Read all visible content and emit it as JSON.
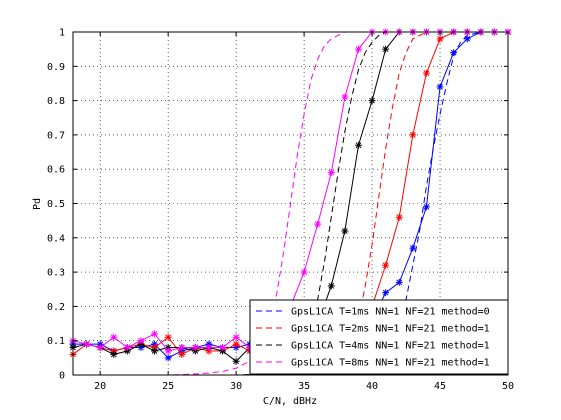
{
  "chart_data": {
    "type": "line",
    "title": "",
    "xlabel": "C/N, dBHz",
    "ylabel": "Pd",
    "xlim": [
      18,
      50
    ],
    "ylim": [
      0,
      1
    ],
    "x_ticks": [
      20,
      25,
      30,
      35,
      40,
      45,
      50
    ],
    "y_ticks": [
      0,
      0.1,
      0.2,
      0.3,
      0.4,
      0.5,
      0.6,
      0.7,
      0.8,
      0.9,
      1
    ],
    "x_tick_labels": [
      "20",
      "25",
      "30",
      "35",
      "40",
      "45",
      "50"
    ],
    "y_tick_labels": [
      "0",
      "0.1",
      "0.2",
      "0.3",
      "0.4",
      "0.5",
      "0.6",
      "0.7",
      "0.8",
      "0.9",
      "1"
    ],
    "grid": true,
    "legend_position": "bottom-right",
    "series": [
      {
        "name": "GpsL1CA T=1ms NN=1 NF=21 method=0",
        "color": "#0000ff",
        "marker": "star",
        "x": [
          18,
          19,
          20,
          21,
          22,
          23,
          24,
          25,
          26,
          27,
          28,
          29,
          30,
          31,
          32,
          33,
          34,
          35,
          36,
          37,
          38,
          39,
          40,
          41,
          42,
          43,
          44,
          45,
          46,
          47,
          48,
          49,
          50
        ],
        "y": [
          0.09,
          0.09,
          0.09,
          0.07,
          0.08,
          0.08,
          0.09,
          0.05,
          0.07,
          0.08,
          0.09,
          0.08,
          0.08,
          0.09,
          0.08,
          0.09,
          0.08,
          0.08,
          0.09,
          0.09,
          0.1,
          0.12,
          0.16,
          0.24,
          0.27,
          0.37,
          0.49,
          0.84,
          0.94,
          0.98,
          1.0,
          1.0,
          1.0
        ]
      },
      {
        "name": "GpsL1CA T=2ms NN=1 NF=21 method=1",
        "color": "#ff0000",
        "marker": "star",
        "x": [
          18,
          19,
          20,
          21,
          22,
          23,
          24,
          25,
          26,
          27,
          28,
          29,
          30,
          31,
          32,
          33,
          34,
          35,
          36,
          37,
          38,
          39,
          40,
          41,
          42,
          43,
          44,
          45,
          46,
          47,
          48,
          49,
          50
        ],
        "y": [
          0.06,
          0.09,
          0.08,
          0.07,
          0.08,
          0.09,
          0.08,
          0.11,
          0.06,
          0.08,
          0.07,
          0.07,
          0.09,
          0.07,
          0.08,
          0.08,
          0.08,
          0.08,
          0.09,
          0.09,
          0.12,
          0.15,
          0.2,
          0.32,
          0.46,
          0.7,
          0.88,
          0.98,
          1.0,
          1.0,
          1.0,
          1.0,
          1.0
        ]
      },
      {
        "name": "GpsL1CA T=4ms NN=1 NF=21 method=1",
        "color": "#000000",
        "marker": "star",
        "x": [
          18,
          19,
          20,
          21,
          22,
          23,
          24,
          25,
          26,
          27,
          28,
          29,
          30,
          31,
          32,
          33,
          34,
          35,
          36,
          37,
          38,
          39,
          40,
          41,
          42,
          43,
          44,
          45,
          46,
          47,
          48,
          49,
          50
        ],
        "y": [
          0.08,
          0.09,
          0.08,
          0.06,
          0.07,
          0.09,
          0.07,
          0.08,
          0.08,
          0.07,
          0.08,
          0.07,
          0.04,
          0.08,
          0.09,
          0.07,
          0.08,
          0.1,
          0.15,
          0.26,
          0.42,
          0.67,
          0.8,
          0.95,
          1.0,
          1.0,
          1.0,
          1.0,
          1.0,
          1.0,
          1.0,
          1.0,
          1.0
        ]
      },
      {
        "name": "GpsL1CA T=8ms NN=1 NF=21 method=1",
        "color": "#ff00ff",
        "marker": "star",
        "x": [
          18,
          19,
          20,
          21,
          22,
          23,
          24,
          25,
          26,
          27,
          28,
          29,
          30,
          31,
          32,
          33,
          34,
          35,
          36,
          37,
          38,
          39,
          40,
          41,
          42,
          43,
          44,
          45,
          46,
          47,
          48,
          49,
          50
        ],
        "y": [
          0.1,
          0.09,
          0.08,
          0.11,
          0.08,
          0.1,
          0.12,
          0.07,
          0.08,
          0.08,
          0.08,
          0.08,
          0.11,
          0.08,
          0.1,
          0.12,
          0.2,
          0.3,
          0.44,
          0.59,
          0.81,
          0.95,
          1.0,
          1.0,
          1.0,
          1.0,
          1.0,
          1.0,
          1.0,
          1.0,
          1.0,
          1.0,
          1.0
        ]
      }
    ],
    "legend_dashed_note": "dashed curves share legend colors without markers",
    "dashed_series": [
      {
        "color": "#0000ff",
        "x": [
          18,
          30,
          32,
          34,
          36,
          38,
          39,
          40,
          40.5,
          41,
          41.5,
          42,
          42.5,
          43,
          43.5,
          44,
          44.5,
          45,
          45.5,
          46,
          46.5,
          47,
          48,
          50
        ],
        "y": [
          0,
          0,
          0,
          0,
          0,
          0,
          0.003,
          0.01,
          0.02,
          0.04,
          0.08,
          0.14,
          0.22,
          0.32,
          0.42,
          0.55,
          0.66,
          0.76,
          0.85,
          0.93,
          0.97,
          0.99,
          1.0,
          1.0
        ]
      },
      {
        "color": "#ff0000",
        "x": [
          18,
          30,
          32,
          34,
          35,
          36,
          37,
          38,
          38.5,
          39,
          39.5,
          40,
          40.5,
          41,
          41.5,
          42,
          42.5,
          43,
          43.5,
          44,
          44.5,
          45,
          46,
          50
        ],
        "y": [
          0,
          0,
          0,
          0,
          0.001,
          0.005,
          0.02,
          0.05,
          0.09,
          0.16,
          0.26,
          0.38,
          0.52,
          0.66,
          0.78,
          0.88,
          0.94,
          0.98,
          0.99,
          1.0,
          1.0,
          1.0,
          1.0,
          1.0
        ]
      },
      {
        "color": "#000000",
        "x": [
          18,
          28,
          30,
          32,
          33,
          34,
          35,
          35.5,
          36,
          36.5,
          37,
          37.5,
          38,
          38.5,
          39,
          39.5,
          40,
          40.5,
          41,
          41.5,
          42,
          44,
          50
        ],
        "y": [
          0,
          0,
          0,
          0.003,
          0.008,
          0.03,
          0.08,
          0.14,
          0.22,
          0.33,
          0.46,
          0.59,
          0.71,
          0.81,
          0.89,
          0.94,
          0.97,
          0.99,
          1.0,
          1.0,
          1.0,
          1.0,
          1.0
        ]
      },
      {
        "color": "#ff00ff",
        "x": [
          18,
          25,
          27,
          28,
          29,
          30,
          31,
          32,
          32.5,
          33,
          33.5,
          34,
          34.5,
          35,
          35.5,
          36,
          36.5,
          37,
          37.5,
          38,
          39,
          40,
          50
        ],
        "y": [
          0,
          0,
          0.003,
          0.006,
          0.01,
          0.02,
          0.04,
          0.09,
          0.15,
          0.24,
          0.36,
          0.5,
          0.64,
          0.76,
          0.86,
          0.92,
          0.96,
          0.98,
          0.99,
          1.0,
          1.0,
          1.0,
          1.0
        ]
      }
    ]
  }
}
